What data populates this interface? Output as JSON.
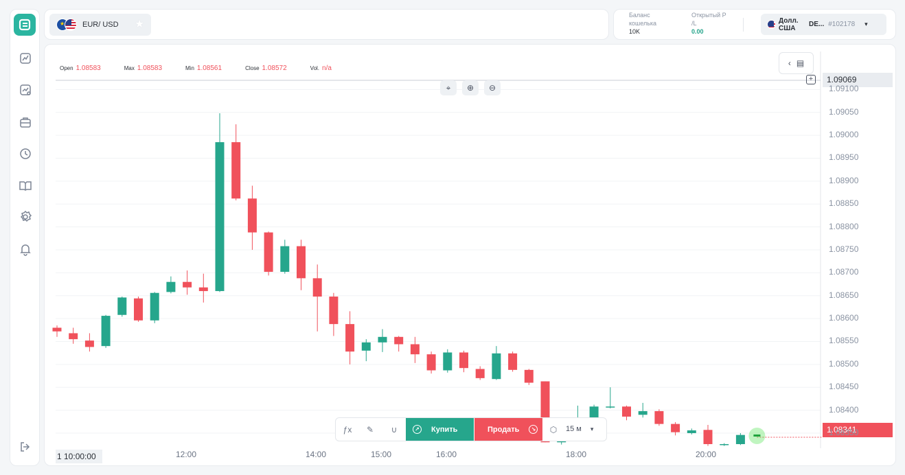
{
  "sidebar": {
    "items": [
      {
        "name": "analytics"
      },
      {
        "name": "chart"
      },
      {
        "name": "portfolio"
      },
      {
        "name": "history"
      },
      {
        "name": "education"
      },
      {
        "name": "settings"
      },
      {
        "name": "notifications"
      }
    ],
    "logout_icon": "logout-icon"
  },
  "header": {
    "pair_label": "EUR/ USD"
  },
  "account": {
    "balance_label": "Баланс кошелька",
    "balance_value": "10K",
    "pl_label": "Открытый P /L",
    "pl_value": "0.00",
    "currency_label": "Долл. США",
    "account_type": "DE...",
    "account_id": "#102178"
  },
  "ohlc": {
    "open_label": "Open",
    "open_value": "1.08583",
    "max_label": "Max",
    "max_value": "1.08583",
    "min_label": "Min",
    "min_value": "1.08561",
    "close_label": "Close",
    "close_value": "1.08572",
    "vol_label": "Vol.",
    "vol_value": "n/a"
  },
  "price_tags": {
    "hover": "1.09069",
    "current": "1.08341"
  },
  "controls": {
    "buy_label": "Купить",
    "sell_label": "Продать",
    "timeframe": "15 м"
  },
  "crosshair_time": "1 10:00:00",
  "colors": {
    "up": "#26a68c",
    "down": "#f0515b",
    "accent": "#2bb5a0"
  },
  "chart_data": {
    "type": "candlestick",
    "y_ticks": [
      "1.09100",
      "1.09050",
      "1.09000",
      "1.08950",
      "1.08900",
      "1.08850",
      "1.08800",
      "1.08750",
      "1.08700",
      "1.08650",
      "1.08600",
      "1.08550",
      "1.08500",
      "1.08450",
      "1.08400",
      "1.08350"
    ],
    "x_ticks": [
      "12:00",
      "14:00",
      "15:00",
      "16:00",
      "18:00",
      "20:00"
    ],
    "ylim": [
      1.0832,
      1.0912
    ],
    "candles": [
      {
        "o": 1.0858,
        "h": 1.08585,
        "l": 1.0856,
        "c": 1.08572
      },
      {
        "o": 1.08568,
        "h": 1.0858,
        "l": 1.08545,
        "c": 1.08555
      },
      {
        "o": 1.08552,
        "h": 1.08568,
        "l": 1.08528,
        "c": 1.08538
      },
      {
        "o": 1.0854,
        "h": 1.08608,
        "l": 1.08536,
        "c": 1.08606
      },
      {
        "o": 1.08608,
        "h": 1.08648,
        "l": 1.08604,
        "c": 1.08646
      },
      {
        "o": 1.08644,
        "h": 1.08648,
        "l": 1.08593,
        "c": 1.08596
      },
      {
        "o": 1.08596,
        "h": 1.08658,
        "l": 1.0859,
        "c": 1.08656
      },
      {
        "o": 1.08658,
        "h": 1.08692,
        "l": 1.08655,
        "c": 1.0868
      },
      {
        "o": 1.0868,
        "h": 1.08705,
        "l": 1.08652,
        "c": 1.08668
      },
      {
        "o": 1.08668,
        "h": 1.08698,
        "l": 1.08635,
        "c": 1.0866
      },
      {
        "o": 1.0866,
        "h": 1.09048,
        "l": 1.08658,
        "c": 1.08985
      },
      {
        "o": 1.08985,
        "h": 1.09024,
        "l": 1.08858,
        "c": 1.08862
      },
      {
        "o": 1.08862,
        "h": 1.0889,
        "l": 1.0875,
        "c": 1.08788
      },
      {
        "o": 1.08788,
        "h": 1.0879,
        "l": 1.08694,
        "c": 1.08702
      },
      {
        "o": 1.08702,
        "h": 1.08772,
        "l": 1.08698,
        "c": 1.08758
      },
      {
        "o": 1.08758,
        "h": 1.08772,
        "l": 1.08662,
        "c": 1.08688
      },
      {
        "o": 1.08688,
        "h": 1.08718,
        "l": 1.08572,
        "c": 1.08648
      },
      {
        "o": 1.08648,
        "h": 1.08656,
        "l": 1.08562,
        "c": 1.08588
      },
      {
        "o": 1.08588,
        "h": 1.08616,
        "l": 1.085,
        "c": 1.08528
      },
      {
        "o": 1.0853,
        "h": 1.08555,
        "l": 1.08507,
        "c": 1.08548
      },
      {
        "o": 1.08548,
        "h": 1.08577,
        "l": 1.08527,
        "c": 1.0856
      },
      {
        "o": 1.0856,
        "h": 1.08562,
        "l": 1.08528,
        "c": 1.08544
      },
      {
        "o": 1.08544,
        "h": 1.0856,
        "l": 1.08503,
        "c": 1.08522
      },
      {
        "o": 1.08522,
        "h": 1.08528,
        "l": 1.0848,
        "c": 1.08487
      },
      {
        "o": 1.08487,
        "h": 1.08533,
        "l": 1.08482,
        "c": 1.08526
      },
      {
        "o": 1.08526,
        "h": 1.0853,
        "l": 1.08483,
        "c": 1.08492
      },
      {
        "o": 1.0849,
        "h": 1.08496,
        "l": 1.08466,
        "c": 1.0847
      },
      {
        "o": 1.08468,
        "h": 1.0854,
        "l": 1.08466,
        "c": 1.08524
      },
      {
        "o": 1.08524,
        "h": 1.08528,
        "l": 1.08484,
        "c": 1.08488
      },
      {
        "o": 1.08488,
        "h": 1.0849,
        "l": 1.08455,
        "c": 1.0846
      },
      {
        "o": 1.08463,
        "h": 1.08463,
        "l": 1.0833,
        "c": 1.0833
      },
      {
        "o": 1.0833,
        "h": 1.08376,
        "l": 1.08325,
        "c": 1.0836
      },
      {
        "o": 1.0836,
        "h": 1.0841,
        "l": 1.0835,
        "c": 1.0838
      },
      {
        "o": 1.0838,
        "h": 1.08412,
        "l": 1.08372,
        "c": 1.08408
      },
      {
        "o": 1.08408,
        "h": 1.0845,
        "l": 1.08404,
        "c": 1.08408
      },
      {
        "o": 1.08408,
        "h": 1.0841,
        "l": 1.08378,
        "c": 1.08386
      },
      {
        "o": 1.0839,
        "h": 1.08416,
        "l": 1.08384,
        "c": 1.08398
      },
      {
        "o": 1.08398,
        "h": 1.08402,
        "l": 1.08366,
        "c": 1.0837
      },
      {
        "o": 1.0837,
        "h": 1.08374,
        "l": 1.08345,
        "c": 1.08352
      },
      {
        "o": 1.0835,
        "h": 1.0836,
        "l": 1.08347,
        "c": 1.08356
      },
      {
        "o": 1.08357,
        "h": 1.08368,
        "l": 1.08322,
        "c": 1.08326
      },
      {
        "o": 1.08324,
        "h": 1.08328,
        "l": 1.08322,
        "c": 1.08326
      },
      {
        "o": 1.08326,
        "h": 1.0835,
        "l": 1.08324,
        "c": 1.08346
      }
    ]
  }
}
